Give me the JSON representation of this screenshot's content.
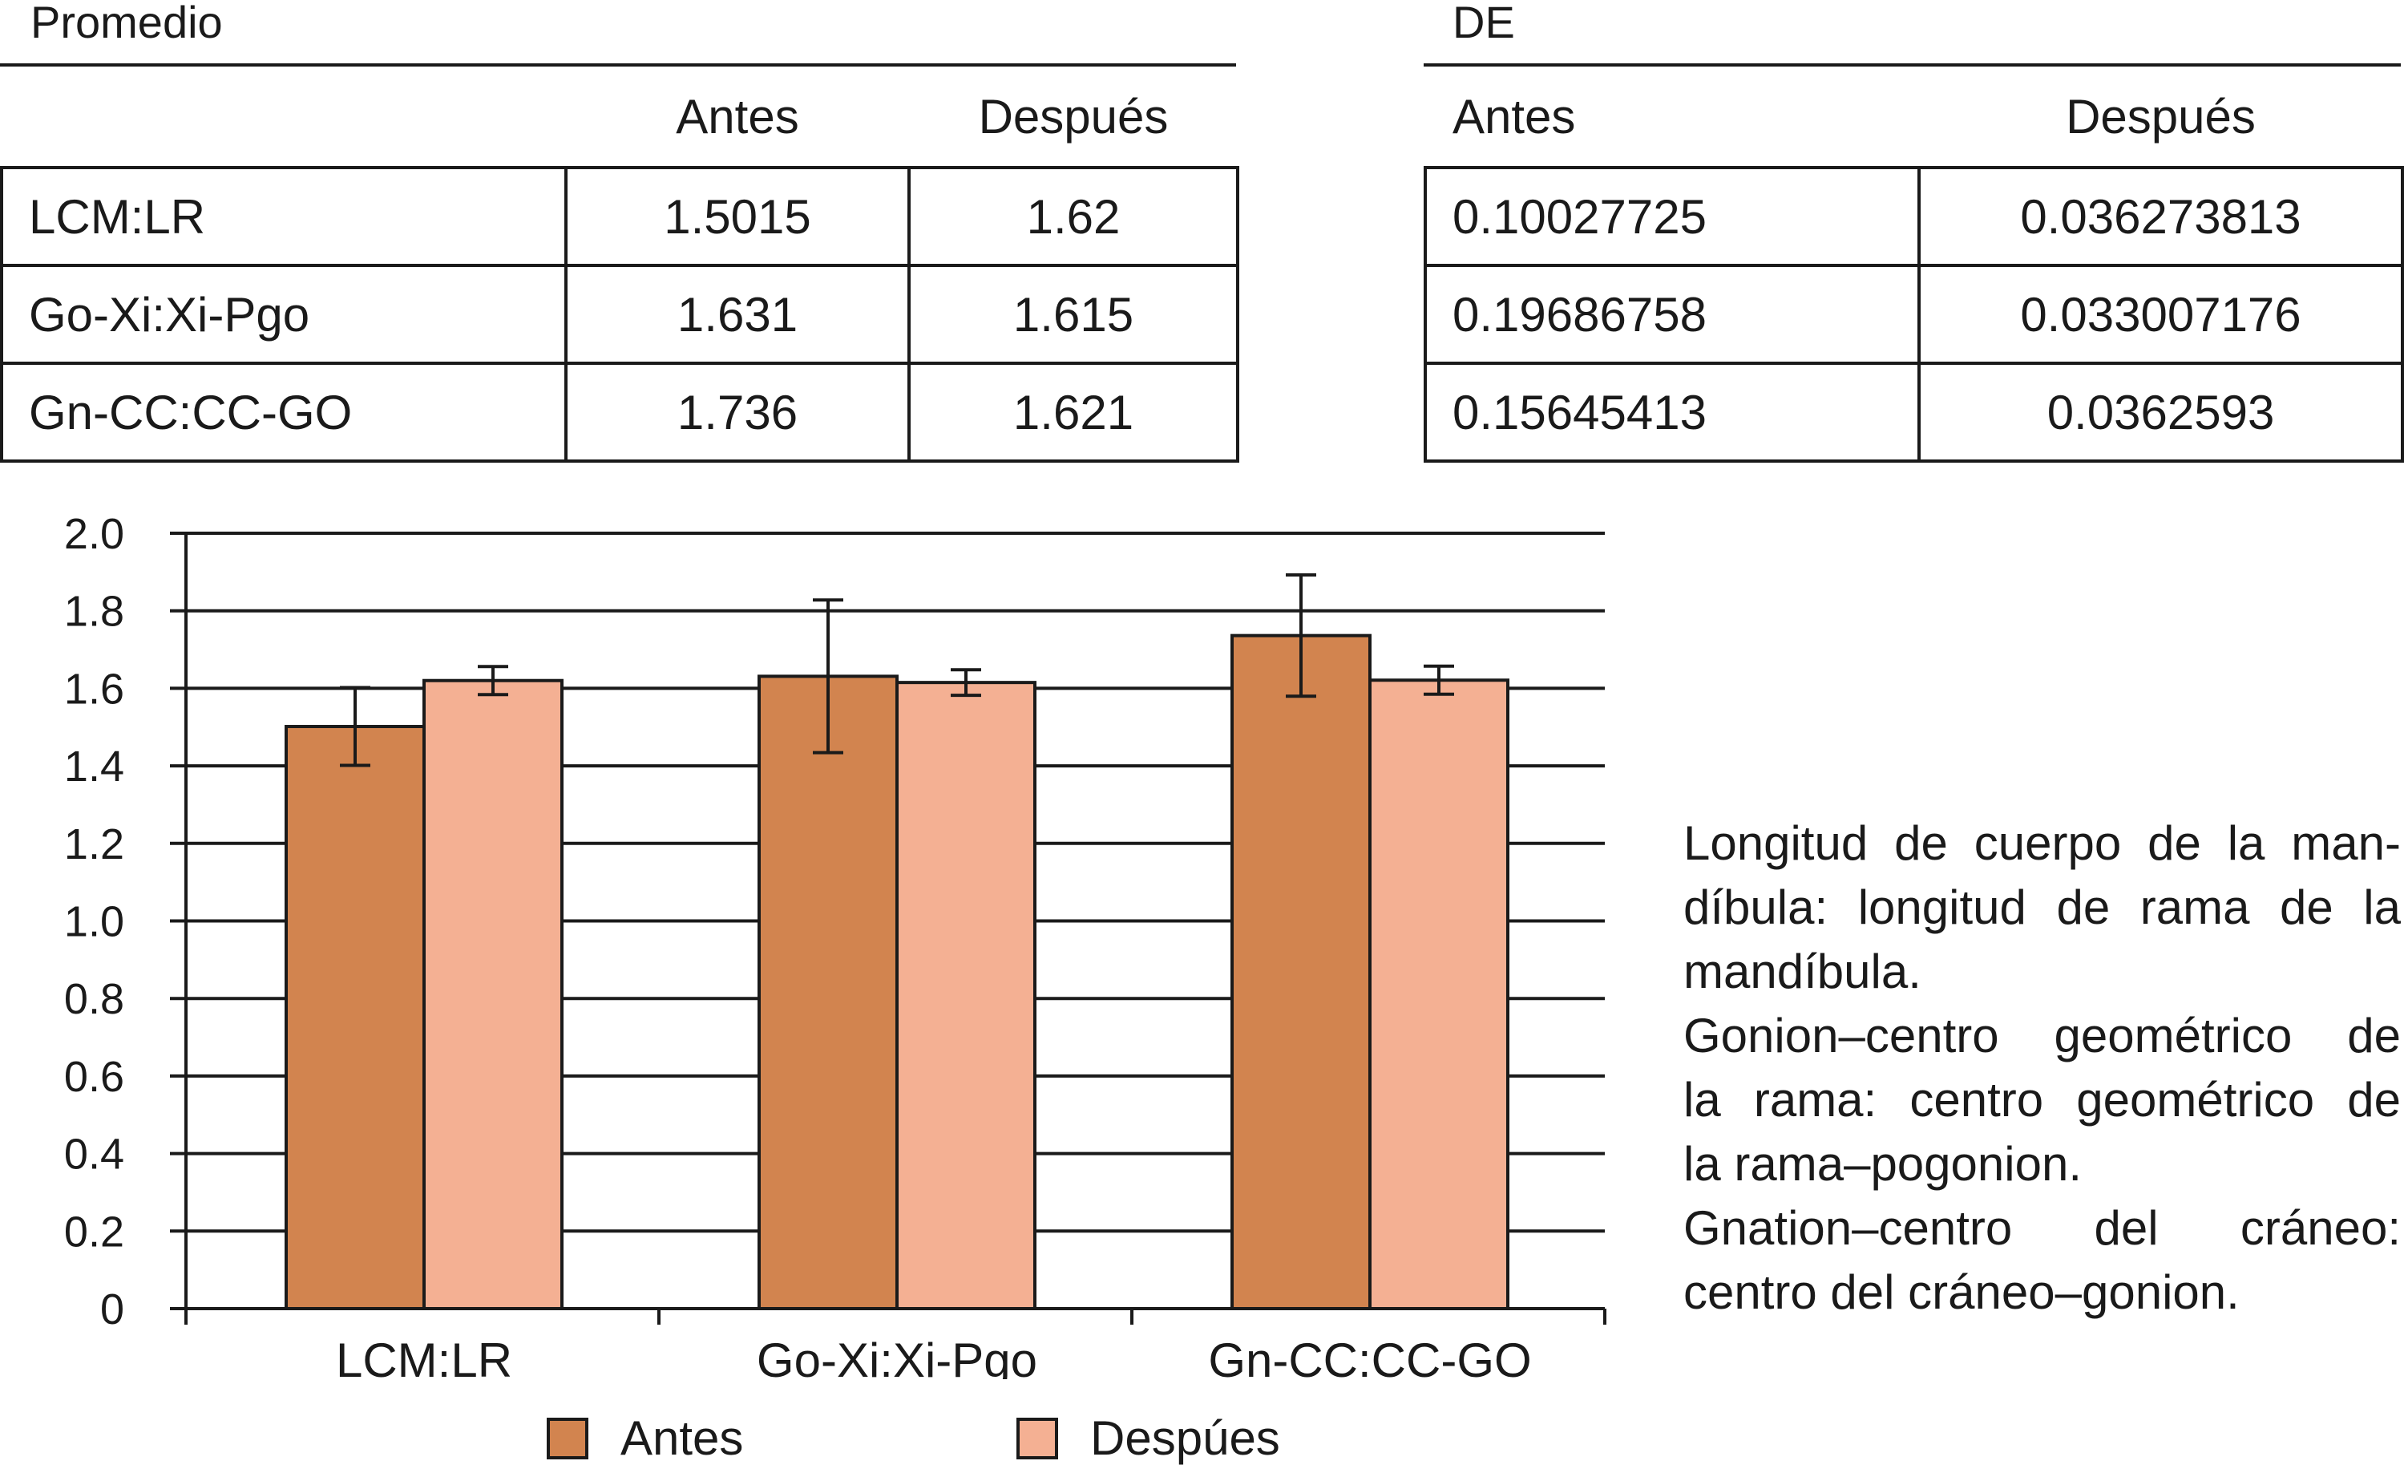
{
  "tables": {
    "promedio": {
      "title": "Promedio",
      "headers": [
        "",
        "Antes",
        "Después"
      ],
      "rows": [
        {
          "label": "LCM:LR",
          "antes": "1.5015",
          "despues": "1.62"
        },
        {
          "label": "Go-Xi:Xi-Pgo",
          "antes": "1.631",
          "despues": "1.615"
        },
        {
          "label": "Gn-CC:CC-GO",
          "antes": "1.736",
          "despues": "1.621"
        }
      ]
    },
    "de": {
      "title": "DE",
      "headers": [
        "Antes",
        "Después"
      ],
      "rows": [
        {
          "antes": "0.10027725",
          "despues": "0.036273813"
        },
        {
          "antes": "0.19686758",
          "despues": "0.033007176"
        },
        {
          "antes": "0.15645413",
          "despues": "0.0362593"
        }
      ]
    }
  },
  "chart_data": {
    "type": "bar",
    "categories": [
      "LCM:LR",
      "Go-Xi:Xi-Pgo",
      "Gn-CC:CC-GO"
    ],
    "series": [
      {
        "name": "Antes",
        "color": "#d2844f",
        "values": [
          1.5015,
          1.631,
          1.736
        ],
        "errors": [
          0.10027725,
          0.19686758,
          0.15645413
        ]
      },
      {
        "name": "Despúes",
        "color": "#f4b093",
        "values": [
          1.62,
          1.615,
          1.621
        ],
        "errors": [
          0.036273813,
          0.033007176,
          0.0362593
        ]
      }
    ],
    "ylim": [
      0,
      2.0
    ],
    "yticks": [
      "0",
      "0.2",
      "0.4",
      "0.6",
      "0.8",
      "1.0",
      "1.2",
      "1.4",
      "1.6",
      "1.8",
      "2.0"
    ],
    "grid": true,
    "legend_position": "bottom"
  },
  "legend": {
    "antes": "Antes",
    "despues": "Despúes"
  },
  "note": {
    "lines": [
      "Longitud de cuerpo de la man-",
      "díbula: longitud de rama de la",
      "mandíbula.",
      "Gonion–centro geométrico de",
      "la rama: centro geométrico de",
      "la rama–pogonion.",
      "Gnation–centro del cráneo:",
      "centro del cráneo–gonion."
    ]
  }
}
